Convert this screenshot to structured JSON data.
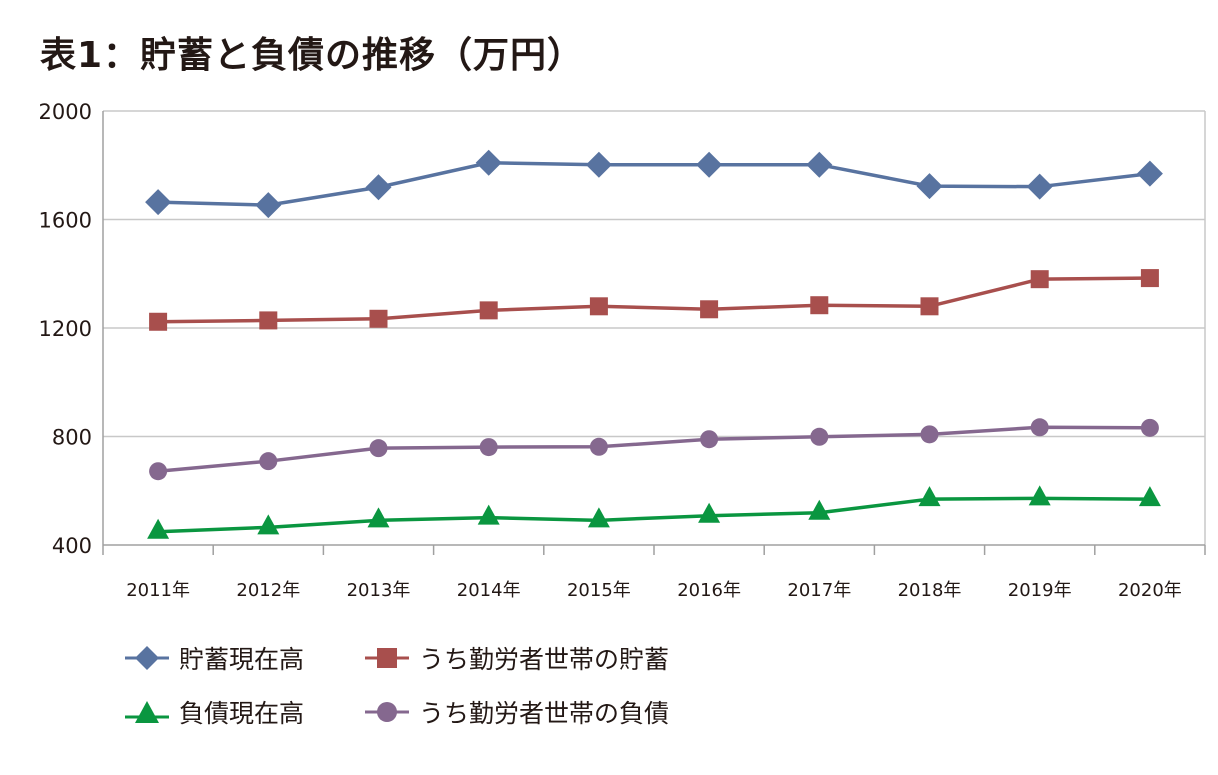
{
  "chart_data": {
    "type": "line",
    "title": "表1：貯蓄と負債の推移（万円）",
    "xlabel": "",
    "ylabel": "",
    "categories": [
      "2011年",
      "2012年",
      "2013年",
      "2014年",
      "2015年",
      "2016年",
      "2017年",
      "2018年",
      "2019年",
      "2020年"
    ],
    "ylim": [
      400,
      2000
    ],
    "yticks": [
      400,
      800,
      1200,
      1600,
      2000
    ],
    "grid": true,
    "legend_position": "bottom",
    "series": [
      {
        "name": "貯蓄現在高",
        "color": "#5873a0",
        "marker": "diamond",
        "values": [
          1664,
          1653,
          1719,
          1809,
          1802,
          1802,
          1802,
          1723,
          1721,
          1769
        ]
      },
      {
        "name": "うち勤労者世帯の貯蓄",
        "color": "#a84f4d",
        "marker": "square",
        "values": [
          1223,
          1228,
          1234,
          1265,
          1280,
          1269,
          1284,
          1280,
          1380,
          1384
        ]
      },
      {
        "name": "負債現在高",
        "color": "#0a9640",
        "marker": "triangle",
        "values": [
          449,
          465,
          491,
          501,
          491,
          508,
          519,
          569,
          572,
          569
        ]
      },
      {
        "name": "うち勤労者世帯の負債",
        "color": "#85688f",
        "marker": "circle",
        "values": [
          672,
          709,
          757,
          761,
          762,
          790,
          799,
          808,
          834,
          832
        ]
      }
    ]
  }
}
